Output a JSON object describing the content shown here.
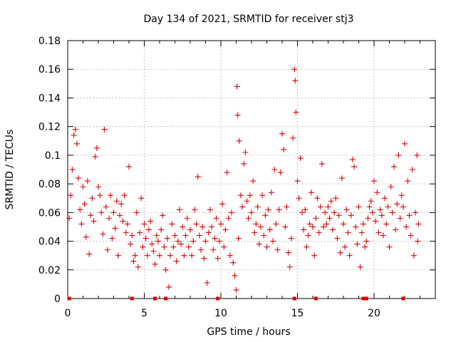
{
  "chart_data": {
    "type": "scatter",
    "title": "Day 134 of 2021, SRMTID for receiver stj3",
    "xlabel": "GPS time / hours",
    "ylabel": "SRMTID / TECUs",
    "xlim": [
      0,
      24
    ],
    "ylim": [
      0,
      0.18
    ],
    "xticks": [
      0,
      5,
      10,
      15,
      20
    ],
    "xtick_labels": [
      "0",
      "5",
      "10",
      "15",
      "20"
    ],
    "yticks": [
      0,
      0.02,
      0.04,
      0.06,
      0.08,
      0.1,
      0.12,
      0.14,
      0.16,
      0.18
    ],
    "ytick_labels": [
      "0",
      "0.02",
      "0.04",
      "0.06",
      "0.08",
      "0.1",
      "0.12",
      "0.14",
      "0.16",
      "0.18"
    ],
    "grid": true,
    "color": "#e00000",
    "marker": "plus",
    "series": [
      {
        "name": "stj3",
        "points": [
          [
            0.1,
            0.056
          ],
          [
            0.2,
            0.072
          ],
          [
            0.3,
            0.09
          ],
          [
            0.4,
            0.114
          ],
          [
            0.5,
            0.118
          ],
          [
            0.6,
            0.108
          ],
          [
            0.7,
            0.084
          ],
          [
            0.8,
            0.062
          ],
          [
            0.9,
            0.052
          ],
          [
            1.0,
            0.078
          ],
          [
            1.1,
            0.066
          ],
          [
            1.2,
            0.043
          ],
          [
            1.3,
            0.082
          ],
          [
            1.4,
            0.031
          ],
          [
            1.5,
            0.058
          ],
          [
            1.6,
            0.07
          ],
          [
            1.7,
            0.054
          ],
          [
            1.8,
            0.099
          ],
          [
            1.9,
            0.105
          ],
          [
            2.0,
            0.078
          ],
          [
            2.1,
            0.072
          ],
          [
            2.2,
            0.06
          ],
          [
            2.3,
            0.045
          ],
          [
            2.4,
            0.118
          ],
          [
            2.5,
            0.064
          ],
          [
            2.6,
            0.034
          ],
          [
            2.7,
            0.056
          ],
          [
            2.8,
            0.072
          ],
          [
            2.9,
            0.042
          ],
          [
            3.0,
            0.06
          ],
          [
            3.1,
            0.049
          ],
          [
            3.2,
            0.068
          ],
          [
            3.3,
            0.03
          ],
          [
            3.4,
            0.058
          ],
          [
            3.5,
            0.066
          ],
          [
            3.6,
            0.054
          ],
          [
            3.7,
            0.072
          ],
          [
            3.8,
            0.046
          ],
          [
            3.9,
            0.052
          ],
          [
            4.0,
            0.092
          ],
          [
            4.1,
            0.038
          ],
          [
            4.2,
            0.044
          ],
          [
            4.3,
            0.026
          ],
          [
            4.4,
            0.03
          ],
          [
            4.5,
            0.06
          ],
          [
            4.6,
            0.022
          ],
          [
            4.7,
            0.046
          ],
          [
            4.8,
            0.07
          ],
          [
            4.9,
            0.036
          ],
          [
            5.0,
            0.052
          ],
          [
            5.1,
            0.042
          ],
          [
            5.2,
            0.03
          ],
          [
            5.3,
            0.048
          ],
          [
            5.4,
            0.054
          ],
          [
            5.5,
            0.038
          ],
          [
            5.6,
            0.033
          ],
          [
            5.7,
            0.024
          ],
          [
            5.8,
            0.044
          ],
          [
            5.9,
            0.04
          ],
          [
            6.0,
            0.03
          ],
          [
            6.1,
            0.048
          ],
          [
            6.2,
            0.058
          ],
          [
            6.3,
            0.036
          ],
          [
            6.4,
            0.02
          ],
          [
            6.5,
            0.042
          ],
          [
            6.6,
            0.008
          ],
          [
            6.7,
            0.03
          ],
          [
            6.8,
            0.052
          ],
          [
            6.9,
            0.036
          ],
          [
            7.0,
            0.044
          ],
          [
            7.1,
            0.026
          ],
          [
            7.2,
            0.04
          ],
          [
            7.3,
            0.062
          ],
          [
            7.4,
            0.038
          ],
          [
            7.5,
            0.05
          ],
          [
            7.6,
            0.03
          ],
          [
            7.7,
            0.044
          ],
          [
            7.8,
            0.056
          ],
          [
            7.9,
            0.036
          ],
          [
            8.0,
            0.048
          ],
          [
            8.1,
            0.03
          ],
          [
            8.2,
            0.04
          ],
          [
            8.3,
            0.062
          ],
          [
            8.4,
            0.052
          ],
          [
            8.5,
            0.085
          ],
          [
            8.6,
            0.044
          ],
          [
            8.7,
            0.034
          ],
          [
            8.8,
            0.05
          ],
          [
            8.9,
            0.028
          ],
          [
            9.0,
            0.04
          ],
          [
            9.1,
            0.011
          ],
          [
            9.2,
            0.046
          ],
          [
            9.3,
            0.062
          ],
          [
            9.4,
            0.05
          ],
          [
            9.5,
            0.034
          ],
          [
            9.6,
            0.042
          ],
          [
            9.7,
            0.056
          ],
          [
            9.8,
            0.028
          ],
          [
            9.9,
            0.04
          ],
          [
            10.0,
            0.052
          ],
          [
            10.1,
            0.066
          ],
          [
            10.2,
            0.036
          ],
          [
            10.3,
            0.048
          ],
          [
            10.4,
            0.088
          ],
          [
            10.5,
            0.056
          ],
          [
            10.6,
            0.03
          ],
          [
            10.7,
            0.06
          ],
          [
            10.8,
            0.025
          ],
          [
            10.9,
            0.016
          ],
          [
            11.0,
            0.006
          ],
          [
            11.05,
            0.148
          ],
          [
            11.1,
            0.128
          ],
          [
            11.15,
            0.042
          ],
          [
            11.2,
            0.11
          ],
          [
            11.3,
            0.072
          ],
          [
            11.4,
            0.064
          ],
          [
            11.5,
            0.094
          ],
          [
            11.6,
            0.102
          ],
          [
            11.7,
            0.068
          ],
          [
            11.8,
            0.056
          ],
          [
            11.9,
            0.072
          ],
          [
            12.0,
            0.06
          ],
          [
            12.1,
            0.082
          ],
          [
            12.2,
            0.046
          ],
          [
            12.3,
            0.052
          ],
          [
            12.4,
            0.064
          ],
          [
            12.5,
            0.038
          ],
          [
            12.6,
            0.05
          ],
          [
            12.7,
            0.072
          ],
          [
            12.8,
            0.044
          ],
          [
            12.9,
            0.058
          ],
          [
            13.0,
            0.036
          ],
          [
            13.1,
            0.062
          ],
          [
            13.2,
            0.048
          ],
          [
            13.3,
            0.074
          ],
          [
            13.4,
            0.04
          ],
          [
            13.5,
            0.09
          ],
          [
            13.6,
            0.052
          ],
          [
            13.7,
            0.034
          ],
          [
            13.8,
            0.062
          ],
          [
            13.9,
            0.088
          ],
          [
            14.0,
            0.115
          ],
          [
            14.1,
            0.104
          ],
          [
            14.2,
            0.05
          ],
          [
            14.3,
            0.064
          ],
          [
            14.4,
            0.032
          ],
          [
            14.5,
            0.022
          ],
          [
            14.6,
            0.042
          ],
          [
            14.7,
            0.112
          ],
          [
            14.8,
            0.16
          ],
          [
            14.85,
            0.152
          ],
          [
            14.9,
            0.13
          ],
          [
            15.0,
            0.082
          ],
          [
            15.1,
            0.07
          ],
          [
            15.2,
            0.098
          ],
          [
            15.3,
            0.06
          ],
          [
            15.4,
            0.048
          ],
          [
            15.5,
            0.062
          ],
          [
            15.6,
            0.036
          ],
          [
            15.7,
            0.044
          ],
          [
            15.8,
            0.052
          ],
          [
            15.9,
            0.074
          ],
          [
            16.0,
            0.05
          ],
          [
            16.1,
            0.03
          ],
          [
            16.2,
            0.056
          ],
          [
            16.3,
            0.07
          ],
          [
            16.4,
            0.046
          ],
          [
            16.5,
            0.064
          ],
          [
            16.6,
            0.094
          ],
          [
            16.7,
            0.05
          ],
          [
            16.8,
            0.06
          ],
          [
            16.9,
            0.052
          ],
          [
            17.0,
            0.064
          ],
          [
            17.1,
            0.056
          ],
          [
            17.2,
            0.068
          ],
          [
            17.3,
            0.048
          ],
          [
            17.4,
            0.06
          ],
          [
            17.5,
            0.07
          ],
          [
            17.6,
            0.042
          ],
          [
            17.7,
            0.058
          ],
          [
            17.8,
            0.032
          ],
          [
            17.9,
            0.084
          ],
          [
            18.0,
            0.052
          ],
          [
            18.1,
            0.036
          ],
          [
            18.2,
            0.062
          ],
          [
            18.3,
            0.046
          ],
          [
            18.4,
            0.03
          ],
          [
            18.5,
            0.058
          ],
          [
            18.6,
            0.097
          ],
          [
            18.7,
            0.092
          ],
          [
            18.8,
            0.05
          ],
          [
            18.9,
            0.038
          ],
          [
            19.0,
            0.064
          ],
          [
            19.1,
            0.022
          ],
          [
            19.2,
            0.046
          ],
          [
            19.3,
            0.052
          ],
          [
            19.4,
            0.036
          ],
          [
            19.5,
            0.04
          ],
          [
            19.6,
            0.056
          ],
          [
            19.7,
            0.064
          ],
          [
            19.8,
            0.068
          ],
          [
            19.9,
            0.06
          ],
          [
            20.0,
            0.082
          ],
          [
            20.1,
            0.054
          ],
          [
            20.2,
            0.074
          ],
          [
            20.3,
            0.046
          ],
          [
            20.4,
            0.062
          ],
          [
            20.5,
            0.058
          ],
          [
            20.6,
            0.044
          ],
          [
            20.7,
            0.07
          ],
          [
            20.8,
            0.052
          ],
          [
            20.9,
            0.064
          ],
          [
            21.0,
            0.036
          ],
          [
            21.1,
            0.078
          ],
          [
            21.2,
            0.06
          ],
          [
            21.3,
            0.092
          ],
          [
            21.4,
            0.048
          ],
          [
            21.5,
            0.066
          ],
          [
            21.6,
            0.1
          ],
          [
            21.7,
            0.056
          ],
          [
            21.8,
            0.072
          ],
          [
            21.9,
            0.064
          ],
          [
            22.0,
            0.108
          ],
          [
            22.1,
            0.05
          ],
          [
            22.2,
            0.082
          ],
          [
            22.3,
            0.058
          ],
          [
            22.4,
            0.044
          ],
          [
            22.5,
            0.09
          ],
          [
            22.6,
            0.03
          ],
          [
            22.7,
            0.06
          ],
          [
            22.8,
            0.1
          ],
          [
            22.85,
            0.04
          ],
          [
            22.9,
            0.052
          ]
        ]
      }
    ],
    "zero_markers": [
      0.1,
      4.2,
      5.7,
      6.4,
      9.8,
      14.8,
      16.2,
      19.3,
      19.5,
      21.9
    ]
  }
}
